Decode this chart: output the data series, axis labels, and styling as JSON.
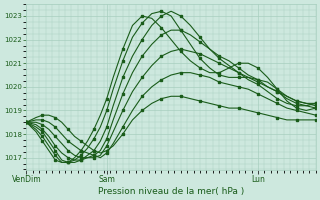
{
  "title": "Pression niveau de la mer( hPa )",
  "bg_color": "#cde8de",
  "grid_color": "#a8cfbf",
  "line_color": "#1a5c1a",
  "ylim": [
    1016.5,
    1023.5
  ],
  "yticks": [
    1017,
    1018,
    1019,
    1020,
    1021,
    1022,
    1023
  ],
  "n_hours": 90,
  "xtick_positions": [
    0,
    25,
    72
  ],
  "xtick_labels": [
    "VenDim",
    "Sam",
    "Lun"
  ],
  "lines": [
    {
      "points": [
        [
          0,
          1018.5
        ],
        [
          3,
          1018.7
        ],
        [
          5,
          1018.8
        ],
        [
          7,
          1018.8
        ],
        [
          9,
          1018.7
        ],
        [
          11,
          1018.5
        ],
        [
          13,
          1018.2
        ],
        [
          15,
          1017.9
        ],
        [
          17,
          1017.7
        ],
        [
          19,
          1017.5
        ],
        [
          21,
          1017.3
        ],
        [
          23,
          1017.2
        ],
        [
          25,
          1017.3
        ],
        [
          27,
          1017.5
        ],
        [
          30,
          1018.0
        ],
        [
          33,
          1018.6
        ],
        [
          36,
          1019.0
        ],
        [
          39,
          1019.3
        ],
        [
          42,
          1019.5
        ],
        [
          45,
          1019.6
        ],
        [
          48,
          1019.6
        ],
        [
          51,
          1019.5
        ],
        [
          54,
          1019.4
        ],
        [
          57,
          1019.3
        ],
        [
          60,
          1019.2
        ],
        [
          63,
          1019.1
        ],
        [
          66,
          1019.1
        ],
        [
          69,
          1019.0
        ],
        [
          72,
          1018.9
        ],
        [
          75,
          1018.8
        ],
        [
          78,
          1018.7
        ],
        [
          81,
          1018.6
        ],
        [
          84,
          1018.6
        ],
        [
          87,
          1018.6
        ],
        [
          90,
          1018.6
        ]
      ]
    },
    {
      "points": [
        [
          0,
          1018.5
        ],
        [
          3,
          1018.6
        ],
        [
          5,
          1018.6
        ],
        [
          7,
          1018.5
        ],
        [
          9,
          1018.3
        ],
        [
          11,
          1018.0
        ],
        [
          13,
          1017.7
        ],
        [
          15,
          1017.5
        ],
        [
          17,
          1017.3
        ],
        [
          19,
          1017.2
        ],
        [
          21,
          1017.1
        ],
        [
          23,
          1017.0
        ],
        [
          25,
          1017.2
        ],
        [
          27,
          1017.6
        ],
        [
          30,
          1018.3
        ],
        [
          33,
          1019.0
        ],
        [
          36,
          1019.6
        ],
        [
          39,
          1020.0
        ],
        [
          42,
          1020.3
        ],
        [
          45,
          1020.5
        ],
        [
          48,
          1020.6
        ],
        [
          51,
          1020.6
        ],
        [
          54,
          1020.5
        ],
        [
          57,
          1020.4
        ],
        [
          60,
          1020.2
        ],
        [
          63,
          1020.1
        ],
        [
          66,
          1020.0
        ],
        [
          69,
          1019.9
        ],
        [
          72,
          1019.7
        ],
        [
          75,
          1019.5
        ],
        [
          78,
          1019.3
        ],
        [
          81,
          1019.1
        ],
        [
          84,
          1019.0
        ],
        [
          87,
          1018.9
        ],
        [
          90,
          1018.8
        ]
      ]
    },
    {
      "points": [
        [
          0,
          1018.5
        ],
        [
          3,
          1018.5
        ],
        [
          5,
          1018.4
        ],
        [
          7,
          1018.2
        ],
        [
          9,
          1017.9
        ],
        [
          11,
          1017.6
        ],
        [
          13,
          1017.3
        ],
        [
          15,
          1017.1
        ],
        [
          17,
          1017.0
        ],
        [
          19,
          1017.0
        ],
        [
          21,
          1017.0
        ],
        [
          23,
          1017.1
        ],
        [
          25,
          1017.5
        ],
        [
          27,
          1018.1
        ],
        [
          30,
          1019.0
        ],
        [
          33,
          1019.8
        ],
        [
          36,
          1020.4
        ],
        [
          39,
          1020.9
        ],
        [
          42,
          1021.3
        ],
        [
          45,
          1021.5
        ],
        [
          48,
          1021.6
        ],
        [
          51,
          1021.5
        ],
        [
          54,
          1021.4
        ],
        [
          57,
          1021.2
        ],
        [
          60,
          1021.0
        ],
        [
          63,
          1020.8
        ],
        [
          66,
          1020.6
        ],
        [
          69,
          1020.4
        ],
        [
          72,
          1020.2
        ],
        [
          75,
          1020.0
        ],
        [
          78,
          1019.8
        ],
        [
          81,
          1019.6
        ],
        [
          84,
          1019.4
        ],
        [
          87,
          1019.3
        ],
        [
          90,
          1019.2
        ]
      ]
    },
    {
      "points": [
        [
          0,
          1018.5
        ],
        [
          3,
          1018.4
        ],
        [
          5,
          1018.2
        ],
        [
          7,
          1017.9
        ],
        [
          9,
          1017.5
        ],
        [
          11,
          1017.2
        ],
        [
          13,
          1017.0
        ],
        [
          15,
          1016.9
        ],
        [
          17,
          1016.9
        ],
        [
          19,
          1017.0
        ],
        [
          21,
          1017.1
        ],
        [
          23,
          1017.3
        ],
        [
          25,
          1017.8
        ],
        [
          27,
          1018.6
        ],
        [
          30,
          1019.7
        ],
        [
          33,
          1020.6
        ],
        [
          36,
          1021.3
        ],
        [
          39,
          1021.8
        ],
        [
          42,
          1022.2
        ],
        [
          45,
          1022.4
        ],
        [
          48,
          1022.4
        ],
        [
          51,
          1022.2
        ],
        [
          54,
          1021.9
        ],
        [
          57,
          1021.6
        ],
        [
          60,
          1021.3
        ],
        [
          63,
          1021.1
        ],
        [
          66,
          1020.8
        ],
        [
          69,
          1020.5
        ],
        [
          72,
          1020.3
        ],
        [
          75,
          1020.0
        ],
        [
          78,
          1019.8
        ],
        [
          81,
          1019.5
        ],
        [
          84,
          1019.3
        ],
        [
          87,
          1019.2
        ],
        [
          90,
          1019.1
        ]
      ]
    },
    {
      "points": [
        [
          0,
          1018.5
        ],
        [
          3,
          1018.3
        ],
        [
          5,
          1018.1
        ],
        [
          7,
          1017.7
        ],
        [
          9,
          1017.3
        ],
        [
          11,
          1016.9
        ],
        [
          13,
          1016.8
        ],
        [
          15,
          1016.8
        ],
        [
          17,
          1016.9
        ],
        [
          19,
          1017.1
        ],
        [
          21,
          1017.3
        ],
        [
          23,
          1017.7
        ],
        [
          25,
          1018.3
        ],
        [
          27,
          1019.2
        ],
        [
          30,
          1020.4
        ],
        [
          33,
          1021.3
        ],
        [
          36,
          1022.0
        ],
        [
          39,
          1022.6
        ],
        [
          42,
          1023.0
        ],
        [
          45,
          1023.2
        ],
        [
          48,
          1023.0
        ],
        [
          51,
          1022.6
        ],
        [
          54,
          1022.1
        ],
        [
          57,
          1021.6
        ],
        [
          60,
          1021.2
        ],
        [
          63,
          1020.9
        ],
        [
          66,
          1020.6
        ],
        [
          69,
          1020.3
        ],
        [
          72,
          1020.1
        ],
        [
          75,
          1019.8
        ],
        [
          78,
          1019.5
        ],
        [
          81,
          1019.3
        ],
        [
          84,
          1019.2
        ],
        [
          87,
          1019.2
        ],
        [
          90,
          1019.3
        ]
      ]
    },
    {
      "points": [
        [
          0,
          1018.5
        ],
        [
          3,
          1018.2
        ],
        [
          5,
          1017.9
        ],
        [
          7,
          1017.5
        ],
        [
          9,
          1017.1
        ],
        [
          11,
          1016.8
        ],
        [
          13,
          1016.8
        ],
        [
          15,
          1016.9
        ],
        [
          17,
          1017.1
        ],
        [
          19,
          1017.4
        ],
        [
          21,
          1017.8
        ],
        [
          23,
          1018.3
        ],
        [
          25,
          1019.0
        ],
        [
          27,
          1019.9
        ],
        [
          30,
          1021.1
        ],
        [
          33,
          1022.1
        ],
        [
          36,
          1022.7
        ],
        [
          39,
          1023.1
        ],
        [
          42,
          1023.2
        ],
        [
          45,
          1023.0
        ],
        [
          48,
          1022.4
        ],
        [
          51,
          1021.8
        ],
        [
          54,
          1021.2
        ],
        [
          57,
          1020.8
        ],
        [
          60,
          1020.5
        ],
        [
          63,
          1020.4
        ],
        [
          66,
          1020.4
        ],
        [
          69,
          1020.4
        ],
        [
          72,
          1020.3
        ],
        [
          75,
          1020.2
        ],
        [
          78,
          1019.9
        ],
        [
          81,
          1019.6
        ],
        [
          84,
          1019.4
        ],
        [
          87,
          1019.3
        ],
        [
          90,
          1019.3
        ]
      ]
    },
    {
      "points": [
        [
          0,
          1018.5
        ],
        [
          3,
          1018.1
        ],
        [
          5,
          1017.7
        ],
        [
          7,
          1017.3
        ],
        [
          9,
          1016.9
        ],
        [
          11,
          1016.8
        ],
        [
          13,
          1016.8
        ],
        [
          15,
          1017.0
        ],
        [
          17,
          1017.3
        ],
        [
          19,
          1017.7
        ],
        [
          21,
          1018.2
        ],
        [
          23,
          1018.8
        ],
        [
          25,
          1019.5
        ],
        [
          27,
          1020.4
        ],
        [
          30,
          1021.6
        ],
        [
          33,
          1022.6
        ],
        [
          36,
          1023.0
        ],
        [
          39,
          1022.9
        ],
        [
          42,
          1022.5
        ],
        [
          45,
          1022.0
        ],
        [
          48,
          1021.5
        ],
        [
          51,
          1021.1
        ],
        [
          54,
          1020.8
        ],
        [
          57,
          1020.6
        ],
        [
          60,
          1020.6
        ],
        [
          63,
          1020.8
        ],
        [
          66,
          1021.0
        ],
        [
          69,
          1021.0
        ],
        [
          72,
          1020.8
        ],
        [
          75,
          1020.4
        ],
        [
          78,
          1019.9
        ],
        [
          81,
          1019.4
        ],
        [
          84,
          1019.1
        ],
        [
          87,
          1019.0
        ],
        [
          90,
          1019.1
        ]
      ]
    }
  ]
}
